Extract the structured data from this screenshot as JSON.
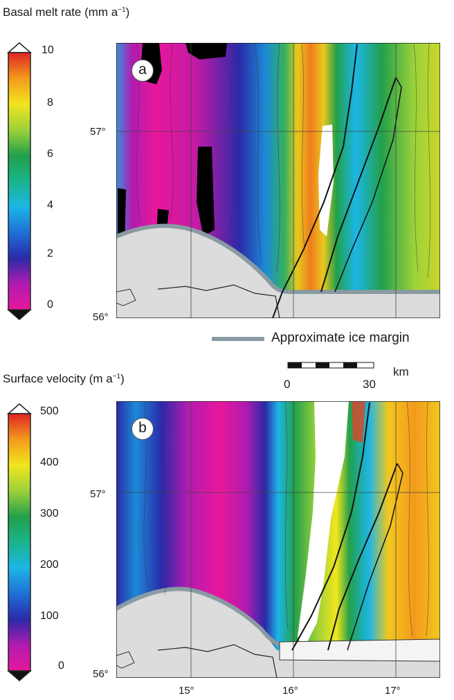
{
  "panel_a": {
    "title_main": "Basal melt rate (mm a",
    "title_sup": "−1",
    "title_end": ")",
    "letter": "a",
    "colorbar_ticks": [
      "10",
      "8",
      "6",
      "4",
      "2",
      "0"
    ],
    "lat_labels": [
      "57°",
      "56°"
    ]
  },
  "panel_b": {
    "title_main": "Surface velocity (m a",
    "title_sup": "−1",
    "title_end": ")",
    "letter": "b",
    "colorbar_ticks": [
      "500",
      "400",
      "300",
      "200",
      "100",
      "0"
    ],
    "lat_labels": [
      "57°",
      "56°"
    ],
    "lon_labels": [
      "15°",
      "16°",
      "17°"
    ]
  },
  "legend": {
    "ice_margin_label": "Approximate ice margin"
  },
  "scale_bar": {
    "start": "0",
    "end": "30",
    "unit": "km"
  },
  "colors": {
    "ice_margin": "#8a9aa3",
    "land": "#dcdcdc",
    "no_data": "#000000"
  }
}
